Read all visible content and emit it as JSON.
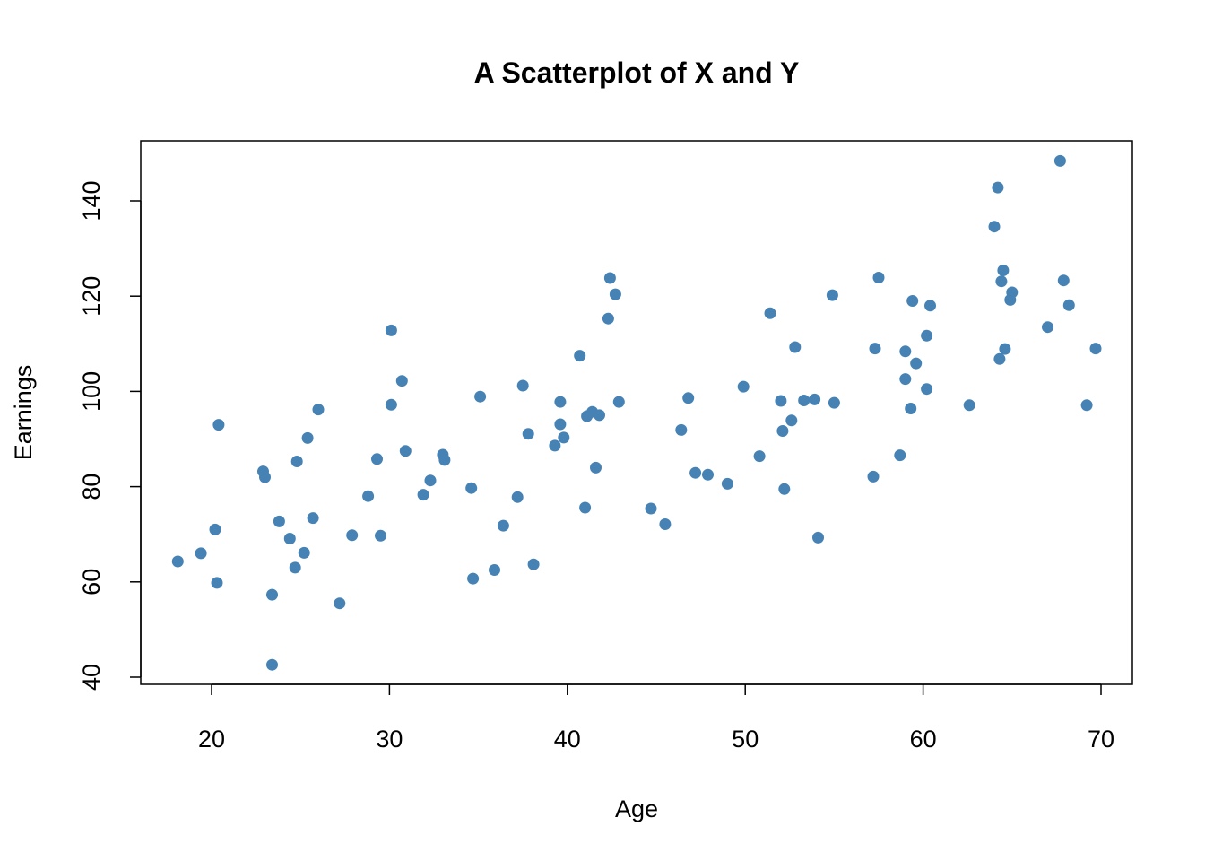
{
  "chart_data": {
    "type": "scatter",
    "title": "A Scatterplot of X and Y",
    "xlabel": "Age",
    "ylabel": "Earnings",
    "xlim": [
      16,
      72
    ],
    "ylim": [
      38,
      150
    ],
    "xticks": [
      20,
      30,
      40,
      50,
      60,
      70
    ],
    "yticks": [
      40,
      60,
      80,
      100,
      120,
      140
    ],
    "grid": false,
    "point_color": "#4682B4",
    "points": [
      [
        18.1,
        64.3
      ],
      [
        19.4,
        66.0
      ],
      [
        20.2,
        71.0
      ],
      [
        20.3,
        59.8
      ],
      [
        20.4,
        93.0
      ],
      [
        22.9,
        83.2
      ],
      [
        23.0,
        82.0
      ],
      [
        23.4,
        57.3
      ],
      [
        23.4,
        42.6
      ],
      [
        23.8,
        72.7
      ],
      [
        24.4,
        69.1
      ],
      [
        24.7,
        63.0
      ],
      [
        24.8,
        85.3
      ],
      [
        25.2,
        66.1
      ],
      [
        25.4,
        90.2
      ],
      [
        25.7,
        73.4
      ],
      [
        26.0,
        96.2
      ],
      [
        27.2,
        55.5
      ],
      [
        27.9,
        69.8
      ],
      [
        28.8,
        78.0
      ],
      [
        29.3,
        85.8
      ],
      [
        29.5,
        69.7
      ],
      [
        30.1,
        97.2
      ],
      [
        30.1,
        112.8
      ],
      [
        30.7,
        102.2
      ],
      [
        30.9,
        87.5
      ],
      [
        31.9,
        78.3
      ],
      [
        32.3,
        81.3
      ],
      [
        33.0,
        86.7
      ],
      [
        33.1,
        85.6
      ],
      [
        34.6,
        79.7
      ],
      [
        34.7,
        60.7
      ],
      [
        35.1,
        98.9
      ],
      [
        35.9,
        62.5
      ],
      [
        36.4,
        71.8
      ],
      [
        37.2,
        77.8
      ],
      [
        37.5,
        101.2
      ],
      [
        37.8,
        91.1
      ],
      [
        38.1,
        63.7
      ],
      [
        39.3,
        88.6
      ],
      [
        39.6,
        97.8
      ],
      [
        39.6,
        93.1
      ],
      [
        39.8,
        90.3
      ],
      [
        40.7,
        107.5
      ],
      [
        41.0,
        75.6
      ],
      [
        41.1,
        94.8
      ],
      [
        41.4,
        95.7
      ],
      [
        41.6,
        84.0
      ],
      [
        41.8,
        95.0
      ],
      [
        42.3,
        115.3
      ],
      [
        42.4,
        123.8
      ],
      [
        42.7,
        120.4
      ],
      [
        42.9,
        97.8
      ],
      [
        44.7,
        75.4
      ],
      [
        45.5,
        72.1
      ],
      [
        46.4,
        91.9
      ],
      [
        46.8,
        98.6
      ],
      [
        47.2,
        82.9
      ],
      [
        47.9,
        82.5
      ],
      [
        49.0,
        80.6
      ],
      [
        49.9,
        101.0
      ],
      [
        50.8,
        86.4
      ],
      [
        51.4,
        116.4
      ],
      [
        52.0,
        98.0
      ],
      [
        52.1,
        91.7
      ],
      [
        52.2,
        79.5
      ],
      [
        52.6,
        93.9
      ],
      [
        52.8,
        109.3
      ],
      [
        53.3,
        98.1
      ],
      [
        53.9,
        98.3
      ],
      [
        54.1,
        69.3
      ],
      [
        54.9,
        120.2
      ],
      [
        55.0,
        97.6
      ],
      [
        57.2,
        82.1
      ],
      [
        57.3,
        109.0
      ],
      [
        57.5,
        123.9
      ],
      [
        58.7,
        86.6
      ],
      [
        59.0,
        108.4
      ],
      [
        59.0,
        102.6
      ],
      [
        59.3,
        96.4
      ],
      [
        59.4,
        119.0
      ],
      [
        59.6,
        105.9
      ],
      [
        60.2,
        111.7
      ],
      [
        60.2,
        100.5
      ],
      [
        60.4,
        118.0
      ],
      [
        62.6,
        97.1
      ],
      [
        64.0,
        134.6
      ],
      [
        64.2,
        142.8
      ],
      [
        64.3,
        106.8
      ],
      [
        64.4,
        123.1
      ],
      [
        64.5,
        125.4
      ],
      [
        64.6,
        108.9
      ],
      [
        64.9,
        119.2
      ],
      [
        65.0,
        120.8
      ],
      [
        67.0,
        113.5
      ],
      [
        67.7,
        148.4
      ],
      [
        67.9,
        123.3
      ],
      [
        68.2,
        118.1
      ],
      [
        69.2,
        97.1
      ],
      [
        69.7,
        109.0
      ]
    ]
  }
}
